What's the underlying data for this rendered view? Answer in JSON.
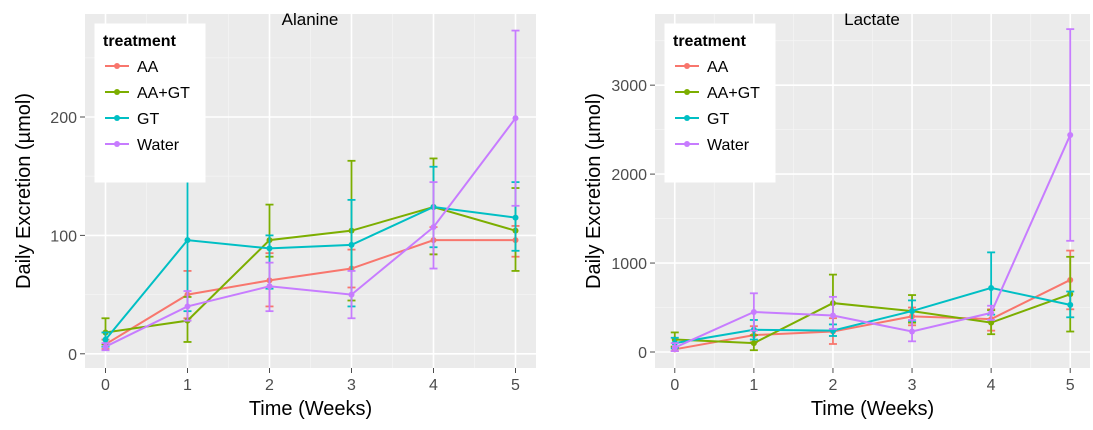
{
  "chart_data": [
    {
      "type": "line",
      "title": "Alanine",
      "xlabel": "Time (Weeks)",
      "ylabel": "Daily Excretion (µmol)",
      "x": [
        0,
        1,
        2,
        3,
        4,
        5
      ],
      "xlim": [
        -0.25,
        5.25
      ],
      "ylim": [
        -12,
        287
      ],
      "yticks": [
        0,
        100,
        200
      ],
      "grid": true,
      "legend": {
        "title": "treatment",
        "position": "top-left"
      },
      "series": [
        {
          "name": "AA",
          "color": "#F8766D",
          "values": [
            8,
            50,
            62,
            72,
            96,
            96
          ],
          "err_low": [
            4,
            30,
            40,
            56,
            84,
            82
          ],
          "err_high": [
            12,
            70,
            85,
            88,
            107,
            108
          ]
        },
        {
          "name": "AA+GT",
          "color": "#7CAE00",
          "values": [
            18,
            28,
            96,
            104,
            124,
            104
          ],
          "err_low": [
            8,
            10,
            82,
            45,
            84,
            70
          ],
          "err_high": [
            30,
            48,
            126,
            163,
            165,
            140
          ]
        },
        {
          "name": "GT",
          "color": "#00BFC4",
          "values": [
            12,
            96,
            89,
            92,
            124,
            115
          ],
          "err_low": [
            6,
            36,
            55,
            40,
            90,
            87
          ],
          "err_high": [
            18,
            165,
            100,
            130,
            158,
            145
          ]
        },
        {
          "name": "Water",
          "color": "#C77CFF",
          "values": [
            6,
            40,
            57,
            50,
            107,
            199
          ],
          "err_low": [
            3,
            28,
            36,
            30,
            72,
            125
          ],
          "err_high": [
            9,
            53,
            77,
            70,
            145,
            273
          ]
        }
      ]
    },
    {
      "type": "line",
      "title": "Lactate",
      "xlabel": "Time (Weeks)",
      "ylabel": "Daily Excretion (µmol)",
      "x": [
        0,
        1,
        2,
        3,
        4,
        5
      ],
      "xlim": [
        -0.25,
        5.25
      ],
      "ylim": [
        -180,
        3800
      ],
      "yticks": [
        0,
        1000,
        2000,
        3000
      ],
      "grid": true,
      "legend": {
        "title": "treatment",
        "position": "top-left"
      },
      "series": [
        {
          "name": "AA",
          "color": "#F8766D",
          "values": [
            30,
            190,
            230,
            400,
            370,
            810
          ],
          "err_low": [
            10,
            110,
            90,
            300,
            240,
            480
          ],
          "err_high": [
            60,
            290,
            380,
            500,
            480,
            1140
          ]
        },
        {
          "name": "AA+GT",
          "color": "#7CAE00",
          "values": [
            140,
            100,
            550,
            460,
            330,
            650
          ],
          "err_low": [
            60,
            20,
            250,
            330,
            200,
            230
          ],
          "err_high": [
            220,
            190,
            870,
            640,
            470,
            1070
          ]
        },
        {
          "name": "GT",
          "color": "#00BFC4",
          "values": [
            100,
            250,
            240,
            460,
            720,
            530
          ],
          "err_low": [
            40,
            140,
            180,
            350,
            420,
            390
          ],
          "err_high": [
            160,
            360,
            310,
            580,
            1120,
            680
          ]
        },
        {
          "name": "Water",
          "color": "#C77CFF",
          "values": [
            50,
            450,
            410,
            230,
            440,
            2440
          ],
          "err_low": [
            10,
            240,
            260,
            120,
            360,
            1250
          ],
          "err_high": [
            100,
            660,
            620,
            360,
            520,
            3630
          ]
        }
      ]
    }
  ]
}
